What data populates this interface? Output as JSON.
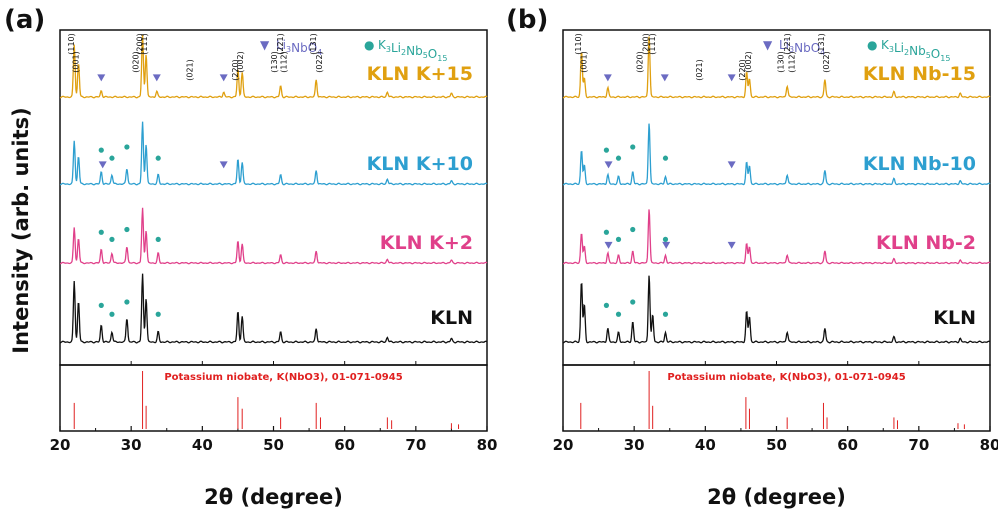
{
  "chart_data": [
    {
      "type": "line",
      "panel": "(a)",
      "xlabel": "2θ (degree)",
      "ylabel": "Intensity (arb. units)",
      "xlim": [
        20,
        80
      ],
      "xticks": [
        20,
        30,
        40,
        50,
        60,
        70,
        80
      ],
      "legend": [
        {
          "symbol": "▼",
          "text": "Li3NbO4",
          "color": "#6b6bc2"
        },
        {
          "symbol": "●",
          "text": "K3Li2Nb5O15",
          "color": "#2aa59a"
        }
      ],
      "reference": {
        "text": "Potassium niobate, K(NbO3), 01-071-0945",
        "color": "#e02020"
      },
      "series": [
        {
          "name": "KLN K+15",
          "color": "#e0a010",
          "peaks": [
            [
              22.0,
              0.85
            ],
            [
              22.6,
              0.55
            ],
            [
              31.6,
              1.0
            ],
            [
              32.1,
              0.7
            ],
            [
              45.0,
              0.45
            ],
            [
              45.6,
              0.4
            ],
            [
              51.0,
              0.18
            ],
            [
              56.0,
              0.28
            ],
            [
              66.0,
              0.08
            ],
            [
              75.0,
              0.06
            ],
            [
              25.8,
              0.1
            ],
            [
              33.6,
              0.09
            ],
            [
              43.0,
              0.08
            ]
          ],
          "hkl": [
            [
              "(110)",
              22.0
            ],
            [
              "(001)",
              22.6
            ],
            [
              "(020)",
              31.0
            ],
            [
              "(200)",
              31.6
            ],
            [
              "(111)",
              32.2
            ],
            [
              "(021)",
              38.6
            ],
            [
              "(220)",
              45.0
            ],
            [
              "(002)",
              45.7
            ],
            [
              "(130)",
              50.5
            ],
            [
              "(221)",
              51.3
            ],
            [
              "(112)",
              51.8
            ],
            [
              "(131)",
              56.0
            ],
            [
              "(022)",
              56.8
            ]
          ],
          "markers_tri": [
            25.8,
            33.6,
            43.0
          ]
        },
        {
          "name": "KLN K+10",
          "color": "#2d9fd0",
          "peaks": [
            [
              22.0,
              0.7
            ],
            [
              22.6,
              0.45
            ],
            [
              25.8,
              0.2
            ],
            [
              27.3,
              0.15
            ],
            [
              29.4,
              0.25
            ],
            [
              31.6,
              1.0
            ],
            [
              32.1,
              0.65
            ],
            [
              33.8,
              0.15
            ],
            [
              45.0,
              0.4
            ],
            [
              45.6,
              0.35
            ],
            [
              51.0,
              0.15
            ],
            [
              56.0,
              0.22
            ],
            [
              66.0,
              0.08
            ],
            [
              75.0,
              0.05
            ]
          ],
          "markers_dot": [
            25.8,
            27.3,
            29.4,
            33.8
          ],
          "markers_tri": [
            26.0,
            43.0
          ]
        },
        {
          "name": "KLN K+2",
          "color": "#e0408a",
          "peaks": [
            [
              22.0,
              0.65
            ],
            [
              22.6,
              0.45
            ],
            [
              25.8,
              0.25
            ],
            [
              27.3,
              0.18
            ],
            [
              29.4,
              0.3
            ],
            [
              31.6,
              1.0
            ],
            [
              32.1,
              0.6
            ],
            [
              33.8,
              0.18
            ],
            [
              45.0,
              0.4
            ],
            [
              45.6,
              0.35
            ],
            [
              51.0,
              0.15
            ],
            [
              56.0,
              0.22
            ],
            [
              66.0,
              0.07
            ],
            [
              75.0,
              0.05
            ]
          ],
          "markers_dot": [
            25.8,
            27.3,
            29.4,
            33.8
          ]
        },
        {
          "name": "KLN",
          "color": "#111111",
          "peaks": [
            [
              22.0,
              0.9
            ],
            [
              22.6,
              0.6
            ],
            [
              25.8,
              0.25
            ],
            [
              27.3,
              0.15
            ],
            [
              29.4,
              0.35
            ],
            [
              31.6,
              1.0
            ],
            [
              32.1,
              0.65
            ],
            [
              33.8,
              0.15
            ],
            [
              45.0,
              0.45
            ],
            [
              45.6,
              0.38
            ],
            [
              51.0,
              0.15
            ],
            [
              56.0,
              0.2
            ],
            [
              66.0,
              0.07
            ],
            [
              75.0,
              0.05
            ]
          ],
          "markers_dot": [
            25.8,
            27.3,
            29.4,
            33.8
          ]
        }
      ],
      "reference_peaks": [
        [
          22.0,
          0.45
        ],
        [
          31.6,
          1.0
        ],
        [
          32.1,
          0.4
        ],
        [
          45.0,
          0.55
        ],
        [
          45.6,
          0.35
        ],
        [
          51.0,
          0.2
        ],
        [
          56.0,
          0.45
        ],
        [
          56.6,
          0.2
        ],
        [
          66.0,
          0.2
        ],
        [
          66.6,
          0.15
        ],
        [
          75.0,
          0.1
        ],
        [
          76.0,
          0.08
        ]
      ]
    },
    {
      "type": "line",
      "panel": "(b)",
      "xlabel": "2θ (degree)",
      "ylabel": "",
      "xlim": [
        20,
        80
      ],
      "xticks": [
        20,
        30,
        40,
        50,
        60,
        70,
        80
      ],
      "legend": [
        {
          "symbol": "▼",
          "text": "Li3NbO4",
          "color": "#6b6bc2"
        },
        {
          "symbol": "●",
          "text": "K3Li2Nb5O15",
          "color": "#2aa59a"
        }
      ],
      "reference": {
        "text": "Potassium niobate, K(NbO3), 01-071-0945",
        "color": "#e02020"
      },
      "series": [
        {
          "name": "KLN Nb-15",
          "color": "#e0a010",
          "peaks": [
            [
              22.6,
              0.75
            ],
            [
              23.0,
              0.3
            ],
            [
              26.3,
              0.15
            ],
            [
              32.1,
              1.0
            ],
            [
              45.8,
              0.4
            ],
            [
              46.2,
              0.3
            ],
            [
              51.5,
              0.18
            ],
            [
              56.8,
              0.28
            ],
            [
              66.5,
              0.08
            ],
            [
              75.8,
              0.06
            ]
          ],
          "hkl": [
            [
              "(110)",
              22.5
            ],
            [
              "(001)",
              23.3
            ],
            [
              "(020)",
              31.2
            ],
            [
              "(200)",
              32.0
            ],
            [
              "(111)",
              32.9
            ],
            [
              "(021)",
              39.5
            ],
            [
              "(220)",
              45.6
            ],
            [
              "(002)",
              46.4
            ],
            [
              "(130)",
              51.0
            ],
            [
              "(221)",
              51.9
            ],
            [
              "(112)",
              52.5
            ],
            [
              "(131)",
              56.7
            ],
            [
              "(022)",
              57.4
            ]
          ],
          "markers_tri": [
            26.3,
            34.3,
            43.7
          ]
        },
        {
          "name": "KLN Nb-10",
          "color": "#2d9fd0",
          "peaks": [
            [
              22.6,
              0.55
            ],
            [
              23.0,
              0.3
            ],
            [
              26.3,
              0.15
            ],
            [
              27.8,
              0.12
            ],
            [
              29.8,
              0.2
            ],
            [
              32.1,
              1.0
            ],
            [
              34.4,
              0.12
            ],
            [
              45.8,
              0.35
            ],
            [
              46.2,
              0.3
            ],
            [
              51.5,
              0.15
            ],
            [
              56.8,
              0.22
            ],
            [
              66.5,
              0.08
            ],
            [
              75.8,
              0.05
            ]
          ],
          "markers_dot": [
            26.1,
            27.8,
            29.8,
            34.4
          ],
          "markers_tri": [
            26.4,
            43.7
          ]
        },
        {
          "name": "KLN Nb-2",
          "color": "#e0408a",
          "peaks": [
            [
              22.6,
              0.55
            ],
            [
              23.0,
              0.3
            ],
            [
              26.3,
              0.18
            ],
            [
              27.8,
              0.14
            ],
            [
              29.8,
              0.22
            ],
            [
              32.1,
              1.0
            ],
            [
              34.4,
              0.14
            ],
            [
              45.8,
              0.35
            ],
            [
              46.2,
              0.3
            ],
            [
              51.5,
              0.15
            ],
            [
              56.8,
              0.22
            ],
            [
              66.5,
              0.07
            ],
            [
              75.8,
              0.05
            ]
          ],
          "markers_dot": [
            26.1,
            27.8,
            29.8,
            34.4
          ],
          "markers_tri": [
            26.4,
            34.5,
            43.7
          ]
        },
        {
          "name": "KLN",
          "color": "#111111",
          "peaks": [
            [
              22.6,
              0.9
            ],
            [
              23.0,
              0.55
            ],
            [
              26.3,
              0.2
            ],
            [
              27.8,
              0.14
            ],
            [
              29.8,
              0.3
            ],
            [
              32.1,
              1.0
            ],
            [
              32.6,
              0.4
            ],
            [
              34.4,
              0.14
            ],
            [
              45.8,
              0.45
            ],
            [
              46.2,
              0.38
            ],
            [
              51.5,
              0.15
            ],
            [
              56.8,
              0.2
            ],
            [
              66.5,
              0.07
            ],
            [
              75.8,
              0.05
            ]
          ],
          "markers_dot": [
            26.1,
            27.8,
            29.8,
            34.4
          ]
        }
      ],
      "reference_peaks": [
        [
          22.5,
          0.45
        ],
        [
          32.1,
          1.0
        ],
        [
          32.6,
          0.4
        ],
        [
          45.7,
          0.55
        ],
        [
          46.2,
          0.35
        ],
        [
          51.5,
          0.2
        ],
        [
          56.6,
          0.45
        ],
        [
          57.1,
          0.2
        ],
        [
          66.5,
          0.2
        ],
        [
          67.0,
          0.15
        ],
        [
          75.5,
          0.1
        ],
        [
          76.4,
          0.08
        ]
      ]
    }
  ]
}
